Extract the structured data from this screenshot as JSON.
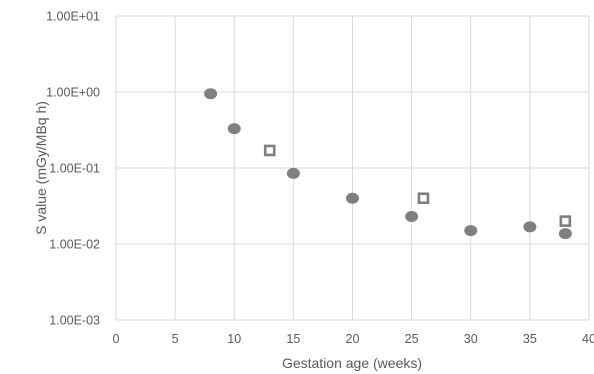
{
  "chart_data": {
    "type": "scatter",
    "title": "",
    "xlabel": "Gestation age (weeks)",
    "ylabel": "S value (mGy/MBq h)",
    "xlim": [
      0,
      40
    ],
    "ylim": [
      0.001,
      10
    ],
    "yscale": "log",
    "grid": true,
    "legend": "none",
    "x_ticks": [
      0,
      5,
      10,
      15,
      20,
      25,
      30,
      35,
      40
    ],
    "x_tick_labels": [
      "0",
      "5",
      "10",
      "15",
      "20",
      "25",
      "30",
      "35",
      "40"
    ],
    "y_ticks": [
      10,
      1,
      0.1,
      0.01,
      0.001
    ],
    "y_tick_labels": [
      "1.00E+01",
      "1.00E+00",
      "1.00E-01",
      "1.00E-02",
      "1.00E-03"
    ],
    "series": [
      {
        "marker": "filled-circle",
        "color": "#7f7f7f",
        "points": [
          {
            "x": 8,
            "y": 0.95
          },
          {
            "x": 10,
            "y": 0.33
          },
          {
            "x": 15,
            "y": 0.085
          },
          {
            "x": 20,
            "y": 0.04
          },
          {
            "x": 25,
            "y": 0.023
          },
          {
            "x": 30,
            "y": 0.015
          },
          {
            "x": 35,
            "y": 0.0168
          },
          {
            "x": 38,
            "y": 0.0137
          }
        ]
      },
      {
        "marker": "open-square",
        "color": "#7f7f7f",
        "points": [
          {
            "x": 13,
            "y": 0.17
          },
          {
            "x": 26,
            "y": 0.04
          },
          {
            "x": 38,
            "y": 0.02
          }
        ]
      }
    ]
  }
}
